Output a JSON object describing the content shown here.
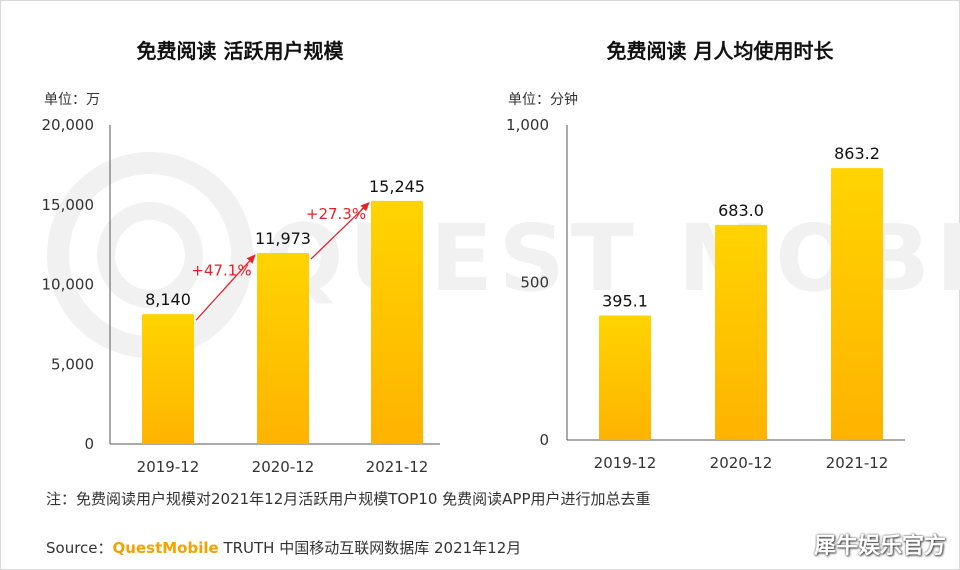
{
  "watermark": "QUEST MOBILE",
  "colors": {
    "bar_top": "#FFD400",
    "bar_bottom": "#FFB300",
    "growth": "#E8202A",
    "brand": "#F5A200"
  },
  "chart_data": [
    {
      "type": "bar",
      "title": "免费阅读 活跃用户规模",
      "unit_label": "单位：万",
      "categories": [
        "2019-12",
        "2020-12",
        "2021-12"
      ],
      "values": [
        8140,
        11973,
        15245
      ],
      "value_labels": [
        "8,140",
        "11,973",
        "15,245"
      ],
      "ylim": [
        0,
        20000
      ],
      "yticks": [
        0,
        5000,
        10000,
        15000,
        20000
      ],
      "ytick_labels": [
        "0",
        "5,000",
        "10,000",
        "15,000",
        "20,000"
      ],
      "annotations": [
        {
          "from": "2019-12",
          "to": "2020-12",
          "text": "+47.1%"
        },
        {
          "from": "2020-12",
          "to": "2021-12",
          "text": "+27.3%"
        }
      ]
    },
    {
      "type": "bar",
      "title": "免费阅读 月人均使用时长",
      "unit_label": "单位：分钟",
      "categories": [
        "2019-12",
        "2020-12",
        "2021-12"
      ],
      "values": [
        395.1,
        683.0,
        863.2
      ],
      "value_labels": [
        "395.1",
        "683.0",
        "863.2"
      ],
      "ylim": [
        0,
        1000
      ],
      "yticks": [
        0,
        500,
        1000
      ],
      "ytick_labels": [
        "0",
        "500",
        "1,000"
      ]
    }
  ],
  "footer": {
    "note": "注：免费阅读用户规模对2021年12月活跃用户规模TOP10 免费阅读APP用户进行加总去重",
    "source_prefix": "Source：",
    "source_brand": "QuestMobile",
    "source_suffix": " TRUTH 中国移动互联网数据库 2021年12月"
  },
  "credit": "犀牛娱乐官方"
}
